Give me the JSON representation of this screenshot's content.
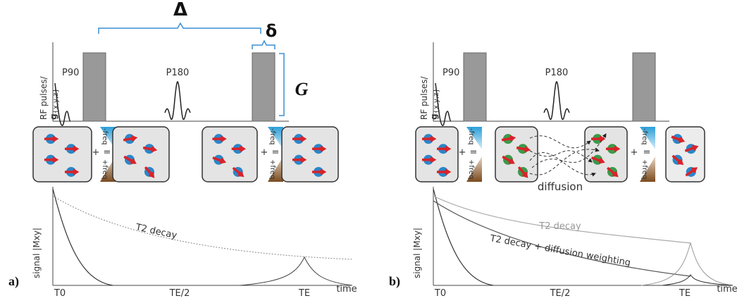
{
  "panel_a": {
    "label": "a)",
    "delta_big": "Δ",
    "delta_small": "δ",
    "gradient": "G",
    "rf_axis": {
      "main": "RF pulses/",
      "bold": "g",
      "sub": "{x,y,z}"
    },
    "pulse_90": "P90",
    "pulse_180": "P180",
    "freq_minus": "-freq",
    "freq_plus": "+freq",
    "plus": "+",
    "equals": "=",
    "signal_axis": "signal |Mxy|",
    "curve_label": "T2 decay",
    "x_labels": [
      "T0",
      "TE/2",
      "TE",
      "time"
    ]
  },
  "panel_b": {
    "label": "b)",
    "rf_axis": {
      "main": "RF pulses/",
      "bold": "g",
      "sub": "{x,y,z}"
    },
    "pulse_90": "P90",
    "pulse_180": "P180",
    "freq_minus": "-freq",
    "freq_plus": "+freq",
    "plus": "+",
    "equals": "=",
    "diffusion": "diffusion",
    "signal_axis": "signal |Mxy|",
    "curve_labels": [
      "T2 decay",
      "T2 decay + diffusion weighting"
    ],
    "x_labels": [
      "T0",
      "TE/2",
      "TE",
      "time"
    ]
  }
}
